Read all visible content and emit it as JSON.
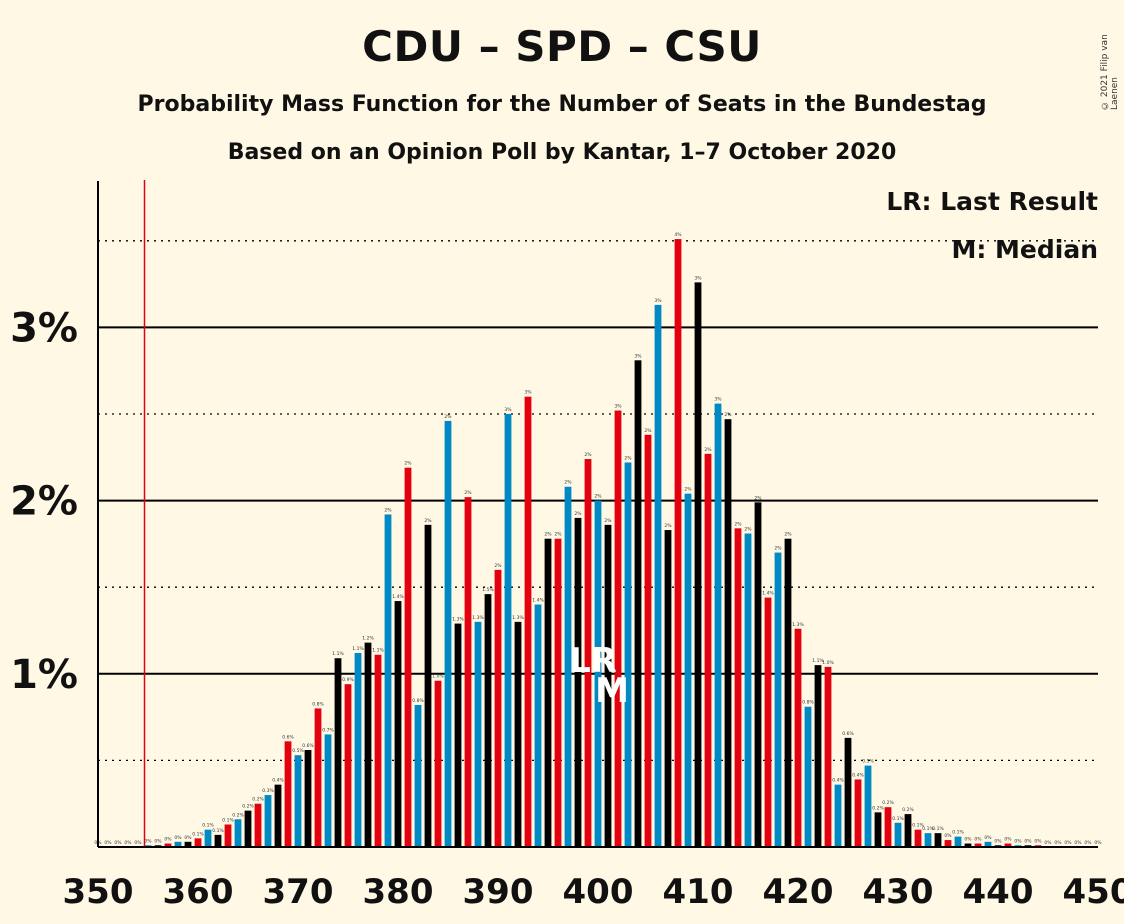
{
  "header": {
    "title": "CDU – SPD – CSU",
    "subtitle1": "Probability Mass Function for the Number of Seats in the Bundestag",
    "subtitle2": "Based on an Opinion Poll by Kantar, 1–7 October 2020",
    "copyright": "© 2021 Filip van Laenen"
  },
  "chart_data": {
    "type": "bar",
    "title": "CDU – SPD – CSU",
    "subtitle": "Probability Mass Function for the Number of Seats in the Bundestag",
    "xlim": [
      350,
      450
    ],
    "ylim": [
      0,
      3.85
    ],
    "x_ticks": [
      350,
      360,
      370,
      380,
      390,
      400,
      410,
      420,
      430,
      440,
      450
    ],
    "y_ticks": [
      {
        "value": 1,
        "label": "1%"
      },
      {
        "value": 2,
        "label": "2%"
      },
      {
        "value": 3,
        "label": "3%"
      }
    ],
    "dotted_gridlines": [
      0.5,
      1.5,
      2.5,
      3.5
    ],
    "majority_line": 355,
    "last_result": 400,
    "median": 401,
    "legend": {
      "lr": "LR: Last Result",
      "m": "M: Median",
      "lr_marker": "LR",
      "m_marker": "M"
    },
    "party_colors": [
      "#000000",
      "#E3000F",
      "#008AC5"
    ],
    "seats": [
      350,
      351,
      352,
      353,
      354,
      355,
      356,
      357,
      358,
      359,
      360,
      361,
      362,
      363,
      364,
      365,
      366,
      367,
      368,
      369,
      370,
      371,
      372,
      373,
      374,
      375,
      376,
      377,
      378,
      379,
      380,
      381,
      382,
      383,
      384,
      385,
      386,
      387,
      388,
      389,
      390,
      391,
      392,
      393,
      394,
      395,
      396,
      397,
      398,
      399,
      400,
      401,
      402,
      403,
      404,
      405,
      406,
      407,
      408,
      409,
      410,
      411,
      412,
      413,
      414,
      415,
      416,
      417,
      418,
      419,
      420,
      421,
      422,
      423,
      424,
      425,
      426,
      427,
      428,
      429,
      430,
      431,
      432,
      433,
      434,
      435,
      436,
      437,
      438,
      439,
      440,
      441,
      442,
      443,
      444,
      445,
      446,
      447,
      448,
      449,
      450
    ],
    "values": [
      0,
      0,
      0,
      0,
      0,
      0.01,
      0.01,
      0.02,
      0.03,
      0.03,
      0.05,
      0.1,
      0.07,
      0.13,
      0.16,
      0.21,
      0.25,
      0.3,
      0.36,
      0.61,
      0.53,
      0.56,
      0.8,
      0.65,
      1.09,
      0.94,
      1.12,
      1.18,
      1.11,
      1.92,
      1.42,
      2.19,
      0.82,
      1.86,
      0.96,
      2.46,
      1.29,
      2.02,
      1.3,
      1.46,
      1.6,
      2.5,
      1.3,
      2.6,
      1.4,
      1.78,
      1.78,
      2.08,
      1.9,
      2.24,
      2.0,
      1.86,
      2.52,
      2.22,
      2.81,
      2.38,
      3.13,
      1.83,
      3.51,
      2.04,
      3.26,
      2.27,
      2.56,
      2.47,
      1.84,
      1.81,
      1.99,
      1.44,
      1.7,
      1.78,
      1.26,
      0.81,
      1.05,
      1.04,
      0.36,
      0.63,
      0.39,
      0.47,
      0.2,
      0.23,
      0.14,
      0.19,
      0.1,
      0.08,
      0.08,
      0.04,
      0.06,
      0.02,
      0.02,
      0.03,
      0.01,
      0.02,
      0.01,
      0.01,
      0.01,
      0,
      0,
      0,
      0,
      0,
      0
    ],
    "value_labels": [
      "0%",
      "0%",
      "0%",
      "0%",
      "0%",
      "0%",
      "0%",
      "0%",
      "0%",
      "0%",
      "0.1%",
      "0.1%",
      "0.1%",
      "0.1%",
      "0.2%",
      "0.2%",
      "0.2%",
      "0.3%",
      "0.4%",
      "0.6%",
      "0.5%",
      "0.6%",
      "0.8%",
      "0.7%",
      "1.1%",
      "0.9%",
      "1.1%",
      "1.2%",
      "1.1%",
      "2%",
      "1.4%",
      "2%",
      "0.8%",
      "2%",
      "1.0%",
      "2%",
      "1.3%",
      "2%",
      "1.3%",
      "1.5%",
      "2%",
      "3%",
      "1.3%",
      "3%",
      "1.4%",
      "2%",
      "2%",
      "2%",
      "2%",
      "2%",
      "2%",
      "2%",
      "3%",
      "2%",
      "3%",
      "2%",
      "3%",
      "2%",
      "4%",
      "2%",
      "3%",
      "2%",
      "3%",
      "2%",
      "2%",
      "2%",
      "2%",
      "1.4%",
      "2%",
      "2%",
      "1.3%",
      "0.8%",
      "1.1%",
      "1.0%",
      "0.4%",
      "0.6%",
      "0.4%",
      "0.5%",
      "0.2%",
      "0.2%",
      "0.1%",
      "0.2%",
      "0.1%",
      "0.1%",
      "0.1%",
      "0%",
      "0.1%",
      "0%",
      "0%",
      "0%",
      "0%",
      "0%",
      "0%",
      "0%",
      "0%",
      "0%",
      "0%",
      "0%",
      "0%",
      "0%",
      "0%"
    ]
  }
}
